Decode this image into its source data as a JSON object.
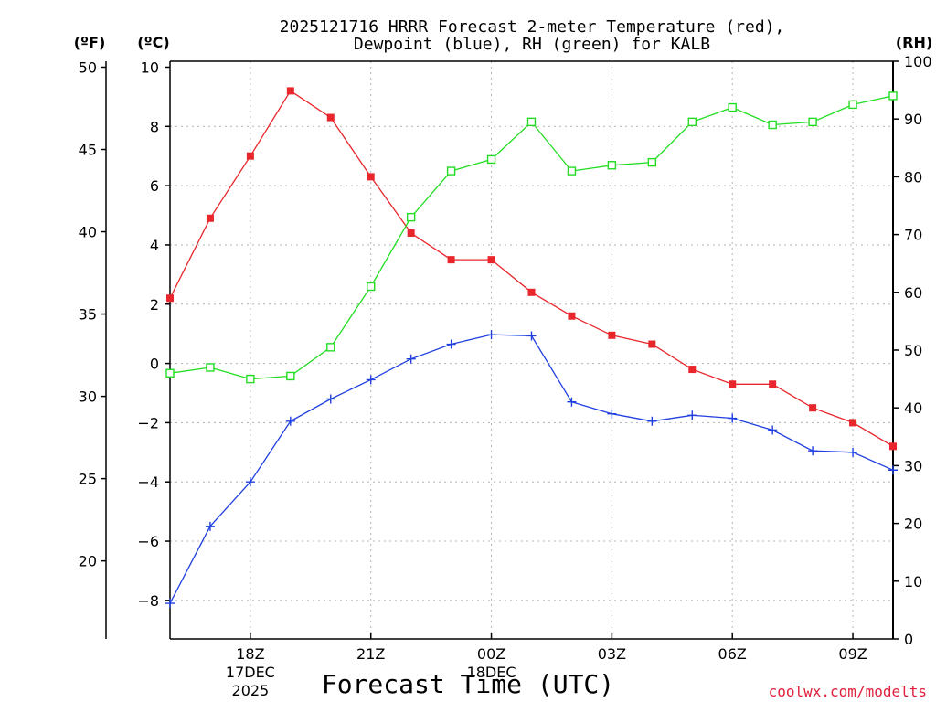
{
  "chart_data": {
    "type": "line",
    "title_line1": "2025121716 HRRR Forecast 2-meter Temperature (red),",
    "title_line2": "Dewpoint (blue), RH (green) for KALB",
    "unit_f": "(ºF)",
    "unit_c": "(ºC)",
    "unit_rh": "(RH)",
    "xlabel": "Forecast Time (UTC)",
    "credit": "coolwx.com/modelts",
    "x_hours": [
      16,
      17,
      18,
      19,
      20,
      21,
      22,
      23,
      24,
      25,
      26,
      27,
      28,
      29,
      30,
      31,
      32,
      33,
      34
    ],
    "x_ticks": [
      {
        "hour": 18,
        "label": "18Z",
        "sub1": "17DEC",
        "sub2": "2025"
      },
      {
        "hour": 21,
        "label": "21Z",
        "sub1": "",
        "sub2": ""
      },
      {
        "hour": 24,
        "label": "00Z",
        "sub1": "18DEC",
        "sub2": ""
      },
      {
        "hour": 27,
        "label": "03Z",
        "sub1": "",
        "sub2": ""
      },
      {
        "hour": 30,
        "label": "06Z",
        "sub1": "",
        "sub2": ""
      },
      {
        "hour": 33,
        "label": "09Z",
        "sub1": "",
        "sub2": ""
      }
    ],
    "xlim": [
      16,
      34
    ],
    "c_ylim": [
      -9.3,
      10.2
    ],
    "c_ticks": [
      -8,
      -6,
      -4,
      -2,
      0,
      2,
      4,
      6,
      8,
      10
    ],
    "c_tick_labels": [
      "−8",
      "−6",
      "−4",
      "−2",
      "0",
      "2",
      "4",
      "6",
      "8",
      "10"
    ],
    "f_ticks": [
      20,
      25,
      30,
      35,
      40,
      45,
      50
    ],
    "f_tick_labels": [
      "20",
      "25",
      "30",
      "35",
      "40",
      "45",
      "50"
    ],
    "rh_ylim": [
      0,
      100
    ],
    "rh_ticks": [
      0,
      10,
      20,
      30,
      40,
      50,
      60,
      70,
      80,
      90,
      100
    ],
    "rh_tick_labels": [
      "0",
      "10",
      "20",
      "30",
      "40",
      "50",
      "60",
      "70",
      "80",
      "90",
      "100"
    ],
    "series": [
      {
        "name": "Temperature",
        "axis": "c",
        "color": "#e8262c",
        "marker": "filled-square",
        "values": [
          2.2,
          4.9,
          7.0,
          9.2,
          8.3,
          6.3,
          4.4,
          3.5,
          3.5,
          2.4,
          1.6,
          0.95,
          0.65,
          -0.2,
          -0.7,
          -0.7,
          -1.5,
          -2.0,
          -2.8
        ]
      },
      {
        "name": "Dewpoint",
        "axis": "c",
        "color": "#1f3fe0",
        "marker": "plus",
        "values": [
          -8.1,
          -5.5,
          -4.0,
          -1.95,
          -1.2,
          -0.55,
          0.15,
          0.65,
          0.97,
          0.93,
          -1.3,
          -1.7,
          -1.95,
          -1.75,
          -1.85,
          -2.25,
          -2.95,
          -3.0,
          -3.6
        ]
      },
      {
        "name": "RH",
        "axis": "rh",
        "color": "#22dd22",
        "marker": "open-square",
        "values": [
          46,
          47,
          45,
          45.5,
          50.5,
          61,
          73,
          81,
          83,
          89.5,
          81,
          82,
          82.5,
          89.5,
          92,
          89,
          89.5,
          92.5,
          94
        ]
      }
    ]
  }
}
